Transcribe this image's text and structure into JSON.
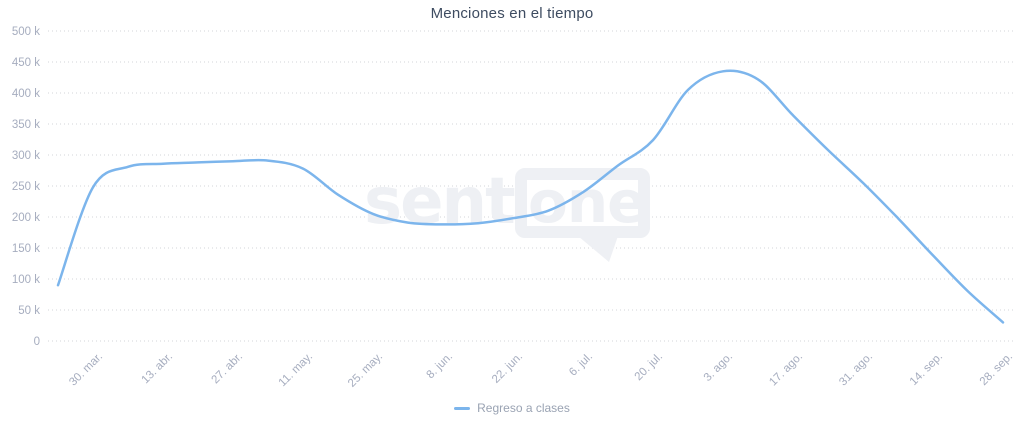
{
  "chart_data": {
    "type": "line",
    "title": "Menciones en el tiempo",
    "xlabel": "",
    "ylabel": "",
    "ylim": [
      0,
      500000
    ],
    "grid": "horizontal-dotted",
    "legend_position": "bottom-center",
    "y_tick_labels": [
      "0",
      "50 k",
      "100 k",
      "150 k",
      "200 k",
      "250 k",
      "300 k",
      "350 k",
      "400 k",
      "450 k",
      "500 k"
    ],
    "y_tick_step": 50000,
    "x_tick_labels": [
      "30. mar.",
      "13. abr.",
      "27. abr.",
      "11. may.",
      "25. may.",
      "8. jun.",
      "22. jun.",
      "6. jul.",
      "20. jul.",
      "3. ago.",
      "17. ago.",
      "31. ago.",
      "14. sep.",
      "28. sep."
    ],
    "series": [
      {
        "name": "Regreso a clases",
        "color": "#7cb5ec",
        "x": [
          "23. mar.",
          "30. mar.",
          "6. abr.",
          "13. abr.",
          "20. abr.",
          "27. abr.",
          "4. may.",
          "11. may.",
          "18. may.",
          "25. may.",
          "1. jun.",
          "8. jun.",
          "15. jun.",
          "22. jun.",
          "29. jun.",
          "6. jul.",
          "13. jul.",
          "20. jul.",
          "27. jul.",
          "3. ago.",
          "10. ago.",
          "17. ago.",
          "24. ago.",
          "31. ago.",
          "7. sep.",
          "14. sep.",
          "21. sep.",
          "28. sep."
        ],
        "values": [
          90000,
          248000,
          281000,
          286000,
          288000,
          290000,
          291000,
          278000,
          236000,
          205000,
          191000,
          188000,
          190000,
          198000,
          210000,
          240000,
          283000,
          324000,
          405000,
          435000,
          422000,
          364000,
          308000,
          255000,
          198000,
          138000,
          80000,
          30000
        ]
      }
    ],
    "watermark": {
      "text_left": "senti",
      "text_bubble": "one"
    }
  },
  "legend": {
    "label": "Regreso a clases"
  },
  "colors": {
    "line": "#7cb5ec",
    "title": "#3e4c61",
    "axis_label": "#a6adbf",
    "grid_dots": "#d3d4da",
    "watermark": "#eef0f4",
    "legend_text": "#9aa3b3",
    "background": "#ffffff"
  }
}
